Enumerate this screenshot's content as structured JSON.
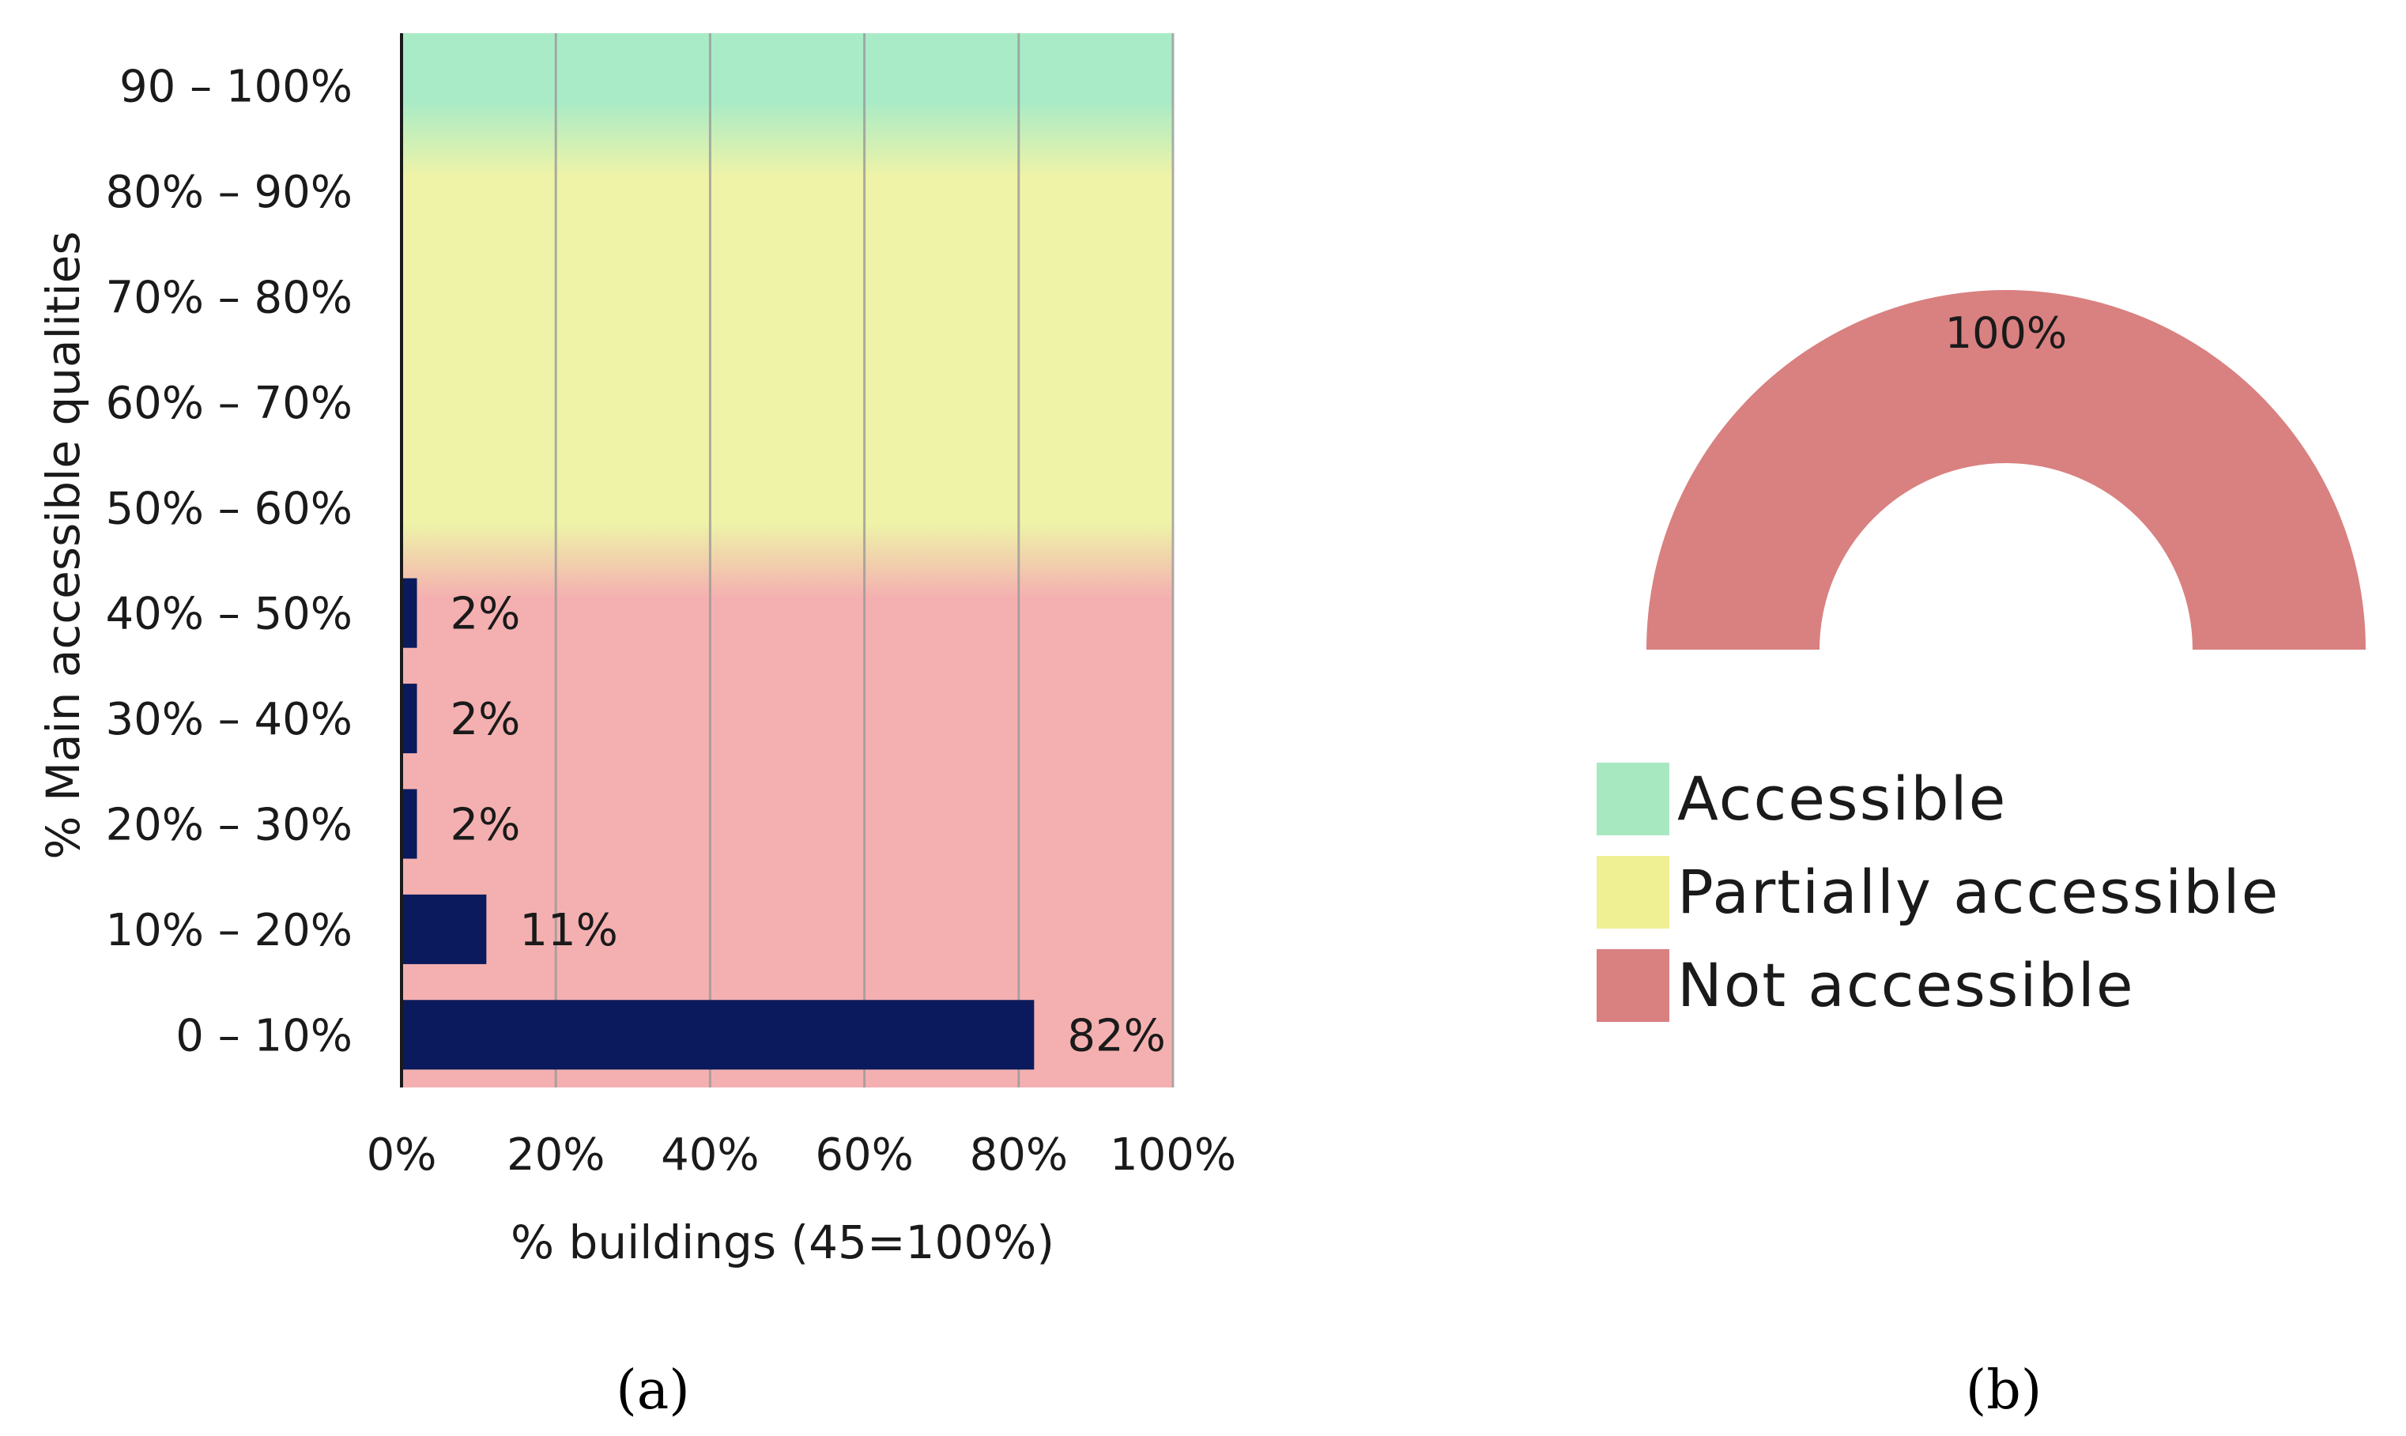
{
  "chart_data": [
    {
      "type": "bar",
      "orientation": "horizontal",
      "panel_label": "a",
      "categories": [
        "0 – 10%",
        "10% – 20%",
        "20% – 30%",
        "30% – 40%",
        "40% – 50%",
        "50% – 60%",
        "60% – 70%",
        "70% – 80%",
        "80% – 90%",
        "90 – 100%"
      ],
      "values": [
        82,
        11,
        2,
        2,
        2,
        0,
        0,
        0,
        0,
        0
      ],
      "data_labels": [
        "82%",
        "11%",
        "2%",
        "2%",
        "2%",
        "",
        "",
        "",
        "",
        ""
      ],
      "xlabel": "% buildings (45=100%)",
      "ylabel": "% Main accessible qualities",
      "xlim": [
        0,
        100
      ],
      "xticks": [
        0,
        20,
        40,
        60,
        80,
        100
      ],
      "xtick_labels": [
        "0%",
        "20%",
        "40%",
        "60%",
        "80%",
        "100%"
      ],
      "grid": "vertical",
      "bar_color": "#0b1a5c",
      "background_zones": [
        {
          "name": "Not accessible",
          "from_category": 0,
          "to_category": 4,
          "color": "#f4b0b0"
        },
        {
          "name": "Partially accessible",
          "from_category": 5,
          "to_category": 8,
          "color": "#eef3a8"
        },
        {
          "name": "Accessible",
          "from_category": 9,
          "to_category": 9,
          "color": "#a9ebc6"
        }
      ]
    },
    {
      "type": "pie",
      "style": "half-donut",
      "panel_label": "b",
      "categories": [
        "Accessible",
        "Partially accessible",
        "Not accessible"
      ],
      "values": [
        0,
        0,
        100
      ],
      "data_labels": [
        "",
        "",
        "100%"
      ],
      "colors": [
        "#a8e8c0",
        "#eef093",
        "#d98080"
      ],
      "legend_position": "bottom"
    }
  ]
}
